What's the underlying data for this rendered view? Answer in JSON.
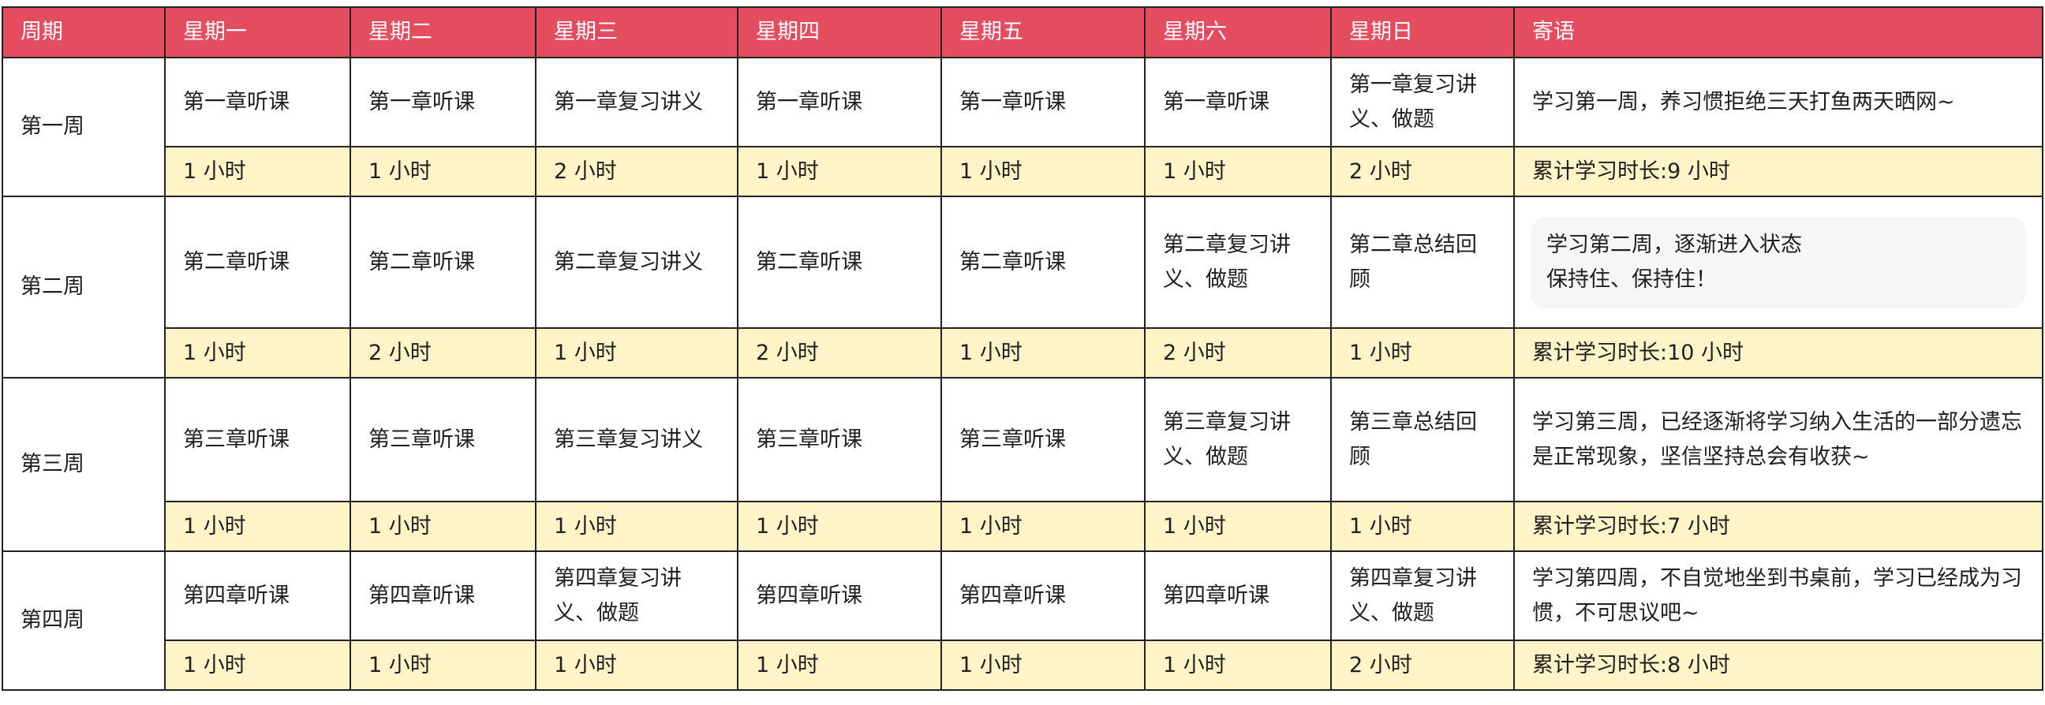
{
  "colors": {
    "header": "#e34d5f",
    "hours_row": "#fff3c8",
    "note_box": "#f6f6f6"
  },
  "headers": [
    "周期",
    "星期一",
    "星期二",
    "星期三",
    "星期四",
    "星期五",
    "星期六",
    "星期日",
    "寄语"
  ],
  "weeks": [
    {
      "label": "第一周",
      "tasks": [
        "第一章听课",
        "第一章听课",
        "第一章复习讲义",
        "第一章听课",
        "第一章听课",
        "第一章听课",
        "第一章复习讲义、做题"
      ],
      "hours": [
        "1 小时",
        "1 小时",
        "2 小时",
        "1 小时",
        "1 小时",
        "1 小时",
        "2 小时"
      ],
      "note": "学习第一周，养习惯拒绝三天打鱼两天晒网~",
      "total": "累计学习时长:9 小时"
    },
    {
      "label": "第二周",
      "tasks": [
        "第二章听课",
        "第二章听课",
        "第二章复习讲义",
        "第二章听课",
        "第二章听课",
        "第二章复习讲义、做题",
        "第二章总结回顾"
      ],
      "hours": [
        "1 小时",
        "2 小时",
        "1 小时",
        "2 小时",
        "1 小时",
        "2 小时",
        "1 小时"
      ],
      "note_lines": [
        "学习第二周，逐渐进入状态",
        "保持住、保持住！"
      ],
      "total": "累计学习时长:10 小时"
    },
    {
      "label": "第三周",
      "tasks": [
        "第三章听课",
        "第三章听课",
        "第三章复习讲义",
        "第三章听课",
        "第三章听课",
        "第三章复习讲义、做题",
        "第三章总结回顾"
      ],
      "hours": [
        "1 小时",
        "1 小时",
        "1 小时",
        "1 小时",
        "1 小时",
        "1 小时",
        "1 小时"
      ],
      "note": "学习第三周，已经逐渐将学习纳入生活的一部分遗忘是正常现象，坚信坚持总会有收获~",
      "total": "累计学习时长:7 小时"
    },
    {
      "label": "第四周",
      "tasks": [
        "第四章听课",
        "第四章听课",
        "第四章复习讲义、做题",
        "第四章听课",
        "第四章听课",
        "第四章听课",
        "第四章复习讲义、做题"
      ],
      "hours": [
        "1 小时",
        "1 小时",
        "1 小时",
        "1 小时",
        "1 小时",
        "1 小时",
        "2 小时"
      ],
      "note": "学习第四周，不自觉地坐到书桌前，学习已经成为习惯，不可思议吧~",
      "total": "累计学习时长:8 小时"
    }
  ]
}
